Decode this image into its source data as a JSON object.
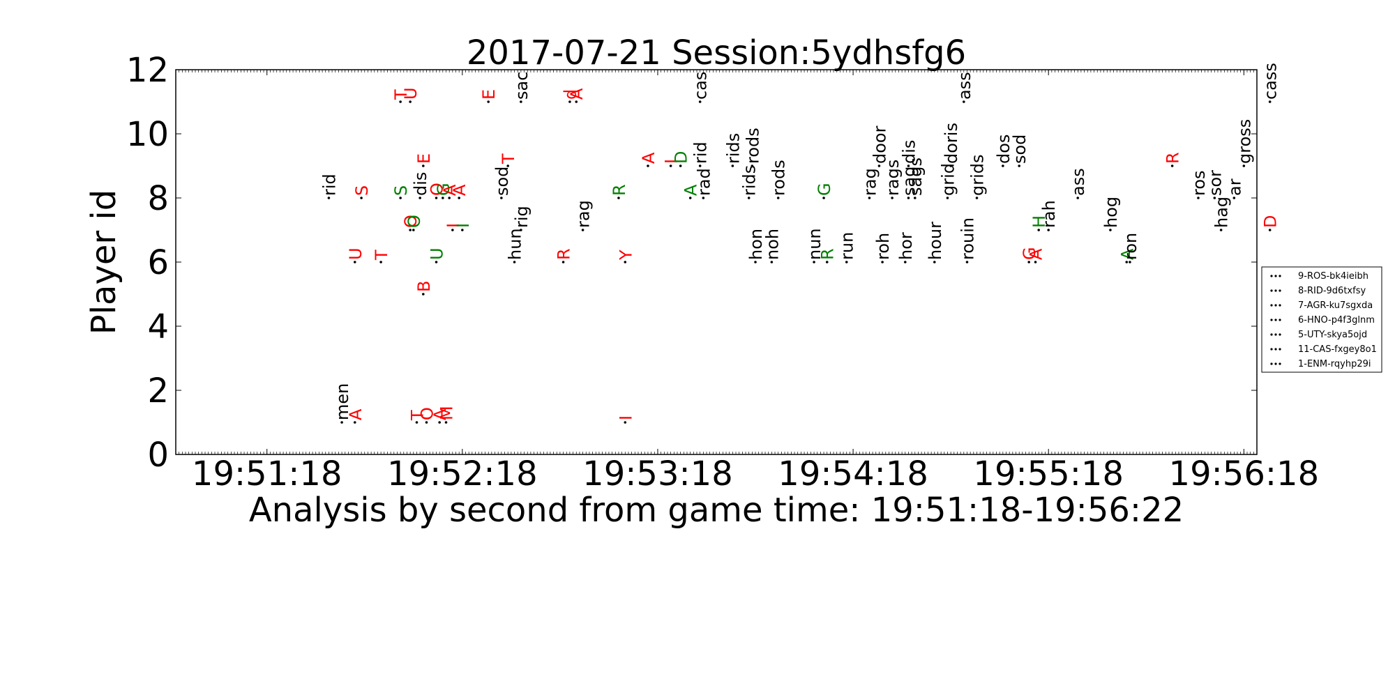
{
  "chart_data": {
    "type": "scatter",
    "title": "2017-07-21 Session:5ydhsfg6",
    "xlabel": "Analysis by second from game time: 19:51:18-19:56:22",
    "ylabel": "Player id",
    "x_unit": "time",
    "xlim": [
      "19:50:50",
      "19:56:22"
    ],
    "ylim": [
      0,
      12
    ],
    "x_ticks": [
      "19:51:18",
      "19:52:18",
      "19:53:18",
      "19:54:18",
      "19:55:18",
      "19:56:18"
    ],
    "y_ticks": [
      0,
      2,
      4,
      6,
      8,
      10,
      12
    ],
    "grid": false,
    "legend_position": "right",
    "legend": [
      "9-ROS-bk4ieibh",
      "8-RID-9d6txfsy",
      "7-AGR-ku7sgxda",
      "6-HNO-p4f3glnm",
      "5-UTY-skya5ojd",
      "11-CAS-fxgey8o1",
      "1-ENM-rqyhp29i"
    ],
    "colors": {
      "red": "#ff0000",
      "green": "#008000",
      "black": "#000000"
    },
    "annotations": [
      {
        "x": "19:51:37",
        "y": 8,
        "text": "rid",
        "color": "black"
      },
      {
        "x": "19:51:41",
        "y": 1,
        "text": "men",
        "color": "black"
      },
      {
        "x": "19:51:45",
        "y": 1,
        "text": "A",
        "color": "red"
      },
      {
        "x": "19:51:45",
        "y": 6,
        "text": "U",
        "color": "red"
      },
      {
        "x": "19:51:47",
        "y": 8,
        "text": "S",
        "color": "red"
      },
      {
        "x": "19:51:53",
        "y": 6,
        "text": "T",
        "color": "red"
      },
      {
        "x": "19:51:59",
        "y": 8,
        "text": "S",
        "color": "green"
      },
      {
        "x": "19:51:59",
        "y": 11,
        "text": "T",
        "color": "red"
      },
      {
        "x": "19:52:02",
        "y": 11,
        "text": "U",
        "color": "red"
      },
      {
        "x": "19:52:02",
        "y": 7,
        "text": "O",
        "color": "red"
      },
      {
        "x": "19:52:03",
        "y": 7,
        "text": "O",
        "color": "green"
      },
      {
        "x": "19:52:04",
        "y": 1,
        "text": "T",
        "color": "red"
      },
      {
        "x": "19:52:05",
        "y": 8,
        "text": "dis",
        "color": "black"
      },
      {
        "x": "19:52:06",
        "y": 5,
        "text": "B",
        "color": "red"
      },
      {
        "x": "19:52:06",
        "y": 9,
        "text": "E",
        "color": "red"
      },
      {
        "x": "19:52:07",
        "y": 1,
        "text": "O",
        "color": "red"
      },
      {
        "x": "19:52:10",
        "y": 8,
        "text": "O",
        "color": "red"
      },
      {
        "x": "19:52:10",
        "y": 6,
        "text": "U",
        "color": "green"
      },
      {
        "x": "19:52:11",
        "y": 1,
        "text": "A",
        "color": "red"
      },
      {
        "x": "19:52:12",
        "y": 8,
        "text": "G",
        "color": "green"
      },
      {
        "x": "19:52:13",
        "y": 1,
        "text": "M",
        "color": "red"
      },
      {
        "x": "19:52:14",
        "y": 8,
        "text": "A",
        "color": "red"
      },
      {
        "x": "19:52:15",
        "y": 7,
        "text": "I",
        "color": "red"
      },
      {
        "x": "19:52:17",
        "y": 8,
        "text": "A",
        "color": "red"
      },
      {
        "x": "19:52:18",
        "y": 7,
        "text": "I",
        "color": "green"
      },
      {
        "x": "19:52:26",
        "y": 11,
        "text": "E",
        "color": "red"
      },
      {
        "x": "19:52:30",
        "y": 8,
        "text": "sod",
        "color": "black"
      },
      {
        "x": "19:52:32",
        "y": 9,
        "text": "T",
        "color": "red"
      },
      {
        "x": "19:52:34",
        "y": 6,
        "text": "hun",
        "color": "black"
      },
      {
        "x": "19:52:36",
        "y": 11,
        "text": "sac",
        "color": "black"
      },
      {
        "x": "19:52:36",
        "y": 7,
        "text": "rig",
        "color": "black"
      },
      {
        "x": "19:52:49",
        "y": 6,
        "text": "R",
        "color": "red"
      },
      {
        "x": "19:52:51",
        "y": 11,
        "text": "d",
        "color": "red"
      },
      {
        "x": "19:52:53",
        "y": 11,
        "text": "A",
        "color": "red"
      },
      {
        "x": "19:52:55",
        "y": 7,
        "text": "rag",
        "color": "black"
      },
      {
        "x": "19:53:06",
        "y": 8,
        "text": "R",
        "color": "green"
      },
      {
        "x": "19:53:08",
        "y": 6,
        "text": "Y",
        "color": "red"
      },
      {
        "x": "19:53:08",
        "y": 1,
        "text": "I",
        "color": "red"
      },
      {
        "x": "19:53:15",
        "y": 9,
        "text": "A",
        "color": "red"
      },
      {
        "x": "19:53:22",
        "y": 9,
        "text": "I",
        "color": "red"
      },
      {
        "x": "19:53:25",
        "y": 9,
        "text": "D",
        "color": "green"
      },
      {
        "x": "19:53:28",
        "y": 8,
        "text": "A",
        "color": "green"
      },
      {
        "x": "19:53:31",
        "y": 11,
        "text": "cas",
        "color": "black"
      },
      {
        "x": "19:53:31",
        "y": 9,
        "text": "rid",
        "color": "black"
      },
      {
        "x": "19:53:32",
        "y": 8,
        "text": "rad",
        "color": "black"
      },
      {
        "x": "19:53:41",
        "y": 9,
        "text": "rids",
        "color": "black"
      },
      {
        "x": "19:53:46",
        "y": 8,
        "text": "rids",
        "color": "black"
      },
      {
        "x": "19:53:47",
        "y": 9,
        "text": "rods",
        "color": "black"
      },
      {
        "x": "19:53:48",
        "y": 6,
        "text": "hon",
        "color": "black"
      },
      {
        "x": "19:53:53",
        "y": 6,
        "text": "noh",
        "color": "black"
      },
      {
        "x": "19:53:55",
        "y": 8,
        "text": "rods",
        "color": "black"
      },
      {
        "x": "19:54:06",
        "y": 6,
        "text": "nun",
        "color": "black"
      },
      {
        "x": "19:54:09",
        "y": 8,
        "text": "G",
        "color": "green"
      },
      {
        "x": "19:54:10",
        "y": 6,
        "text": "R",
        "color": "green"
      },
      {
        "x": "19:54:16",
        "y": 6,
        "text": "run",
        "color": "black"
      },
      {
        "x": "19:54:23",
        "y": 8,
        "text": "rag",
        "color": "black"
      },
      {
        "x": "19:54:26",
        "y": 9,
        "text": "door",
        "color": "black"
      },
      {
        "x": "19:54:27",
        "y": 6,
        "text": "roh",
        "color": "black"
      },
      {
        "x": "19:54:30",
        "y": 8,
        "text": "rags",
        "color": "black"
      },
      {
        "x": "19:54:34",
        "y": 6,
        "text": "hor",
        "color": "black"
      },
      {
        "x": "19:54:35",
        "y": 8,
        "text": "sag",
        "color": "black"
      },
      {
        "x": "19:54:35",
        "y": 9,
        "text": "dis",
        "color": "black"
      },
      {
        "x": "19:54:37",
        "y": 8,
        "text": "sags",
        "color": "black"
      },
      {
        "x": "19:54:43",
        "y": 6,
        "text": "hour",
        "color": "black"
      },
      {
        "x": "19:54:47",
        "y": 8,
        "text": "grid",
        "color": "black"
      },
      {
        "x": "19:54:48",
        "y": 9,
        "text": "doris",
        "color": "black"
      },
      {
        "x": "19:54:52",
        "y": 11,
        "text": "ass",
        "color": "black"
      },
      {
        "x": "19:54:53",
        "y": 6,
        "text": "rouin",
        "color": "black"
      },
      {
        "x": "19:54:56",
        "y": 8,
        "text": "grids",
        "color": "black"
      },
      {
        "x": "19:55:04",
        "y": 9,
        "text": "dos",
        "color": "black"
      },
      {
        "x": "19:55:09",
        "y": 9,
        "text": "sod",
        "color": "black"
      },
      {
        "x": "19:55:12",
        "y": 6,
        "text": "G",
        "color": "red"
      },
      {
        "x": "19:55:14",
        "y": 6,
        "text": "A",
        "color": "red"
      },
      {
        "x": "19:55:15",
        "y": 7,
        "text": "H",
        "color": "green"
      },
      {
        "x": "19:55:18",
        "y": 7,
        "text": "rah",
        "color": "black"
      },
      {
        "x": "19:55:27",
        "y": 8,
        "text": "ass",
        "color": "black"
      },
      {
        "x": "19:55:37",
        "y": 7,
        "text": "hog",
        "color": "black"
      },
      {
        "x": "19:55:42",
        "y": 6,
        "text": "A",
        "color": "green"
      },
      {
        "x": "19:55:43",
        "y": 6,
        "text": "ron",
        "color": "black"
      },
      {
        "x": "19:55:56",
        "y": 9,
        "text": "R",
        "color": "red"
      },
      {
        "x": "19:56:04",
        "y": 8,
        "text": "ros",
        "color": "black"
      },
      {
        "x": "19:56:09",
        "y": 8,
        "text": "sor",
        "color": "black"
      },
      {
        "x": "19:56:11",
        "y": 7,
        "text": "hag",
        "color": "black"
      },
      {
        "x": "19:56:15",
        "y": 8,
        "text": "ar",
        "color": "black"
      },
      {
        "x": "19:56:18",
        "y": 9,
        "text": "gross",
        "color": "black"
      },
      {
        "x": "19:56:26",
        "y": 11,
        "text": "cass",
        "color": "black"
      },
      {
        "x": "19:56:26",
        "y": 7,
        "text": "D",
        "color": "red"
      }
    ]
  }
}
